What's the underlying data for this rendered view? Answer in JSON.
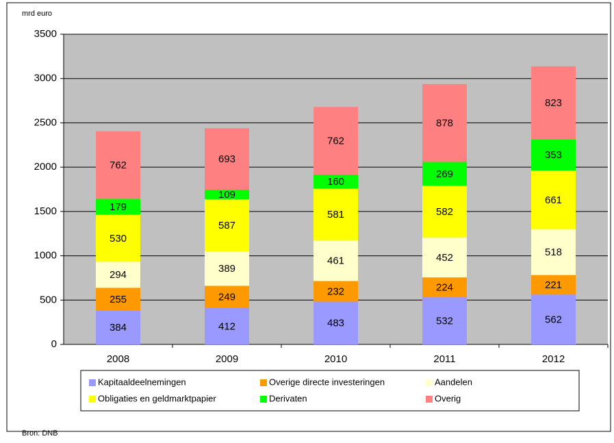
{
  "chart_data": {
    "type": "stacked_bar",
    "y_axis_label": "mrd euro",
    "source": "Bron: DNB",
    "categories": [
      "2008",
      "2009",
      "2010",
      "2011",
      "2012"
    ],
    "series": [
      {
        "name": "Kapitaaldeelnemingen",
        "color": "#9999ff",
        "values": [
          384,
          412,
          483,
          532,
          562
        ]
      },
      {
        "name": "Overige directe investeringen",
        "color": "#ff9900",
        "values": [
          255,
          249,
          232,
          224,
          221
        ]
      },
      {
        "name": "Aandelen",
        "color": "#ffffcc",
        "values": [
          294,
          389,
          461,
          452,
          518
        ]
      },
      {
        "name": "Obligaties en geldmarktpapier",
        "color": "#ffff00",
        "values": [
          530,
          587,
          581,
          582,
          661
        ]
      },
      {
        "name": "Derivaten",
        "color": "#00ff00",
        "values": [
          179,
          109,
          160,
          269,
          353
        ]
      },
      {
        "name": "Overig",
        "color": "#ff8080",
        "values": [
          762,
          693,
          762,
          878,
          823
        ]
      }
    ],
    "ylim": [
      0,
      3500
    ],
    "yticks": [
      0,
      500,
      1000,
      1500,
      2000,
      2500,
      3000,
      3500
    ],
    "grid": true,
    "legend": "bottom"
  }
}
